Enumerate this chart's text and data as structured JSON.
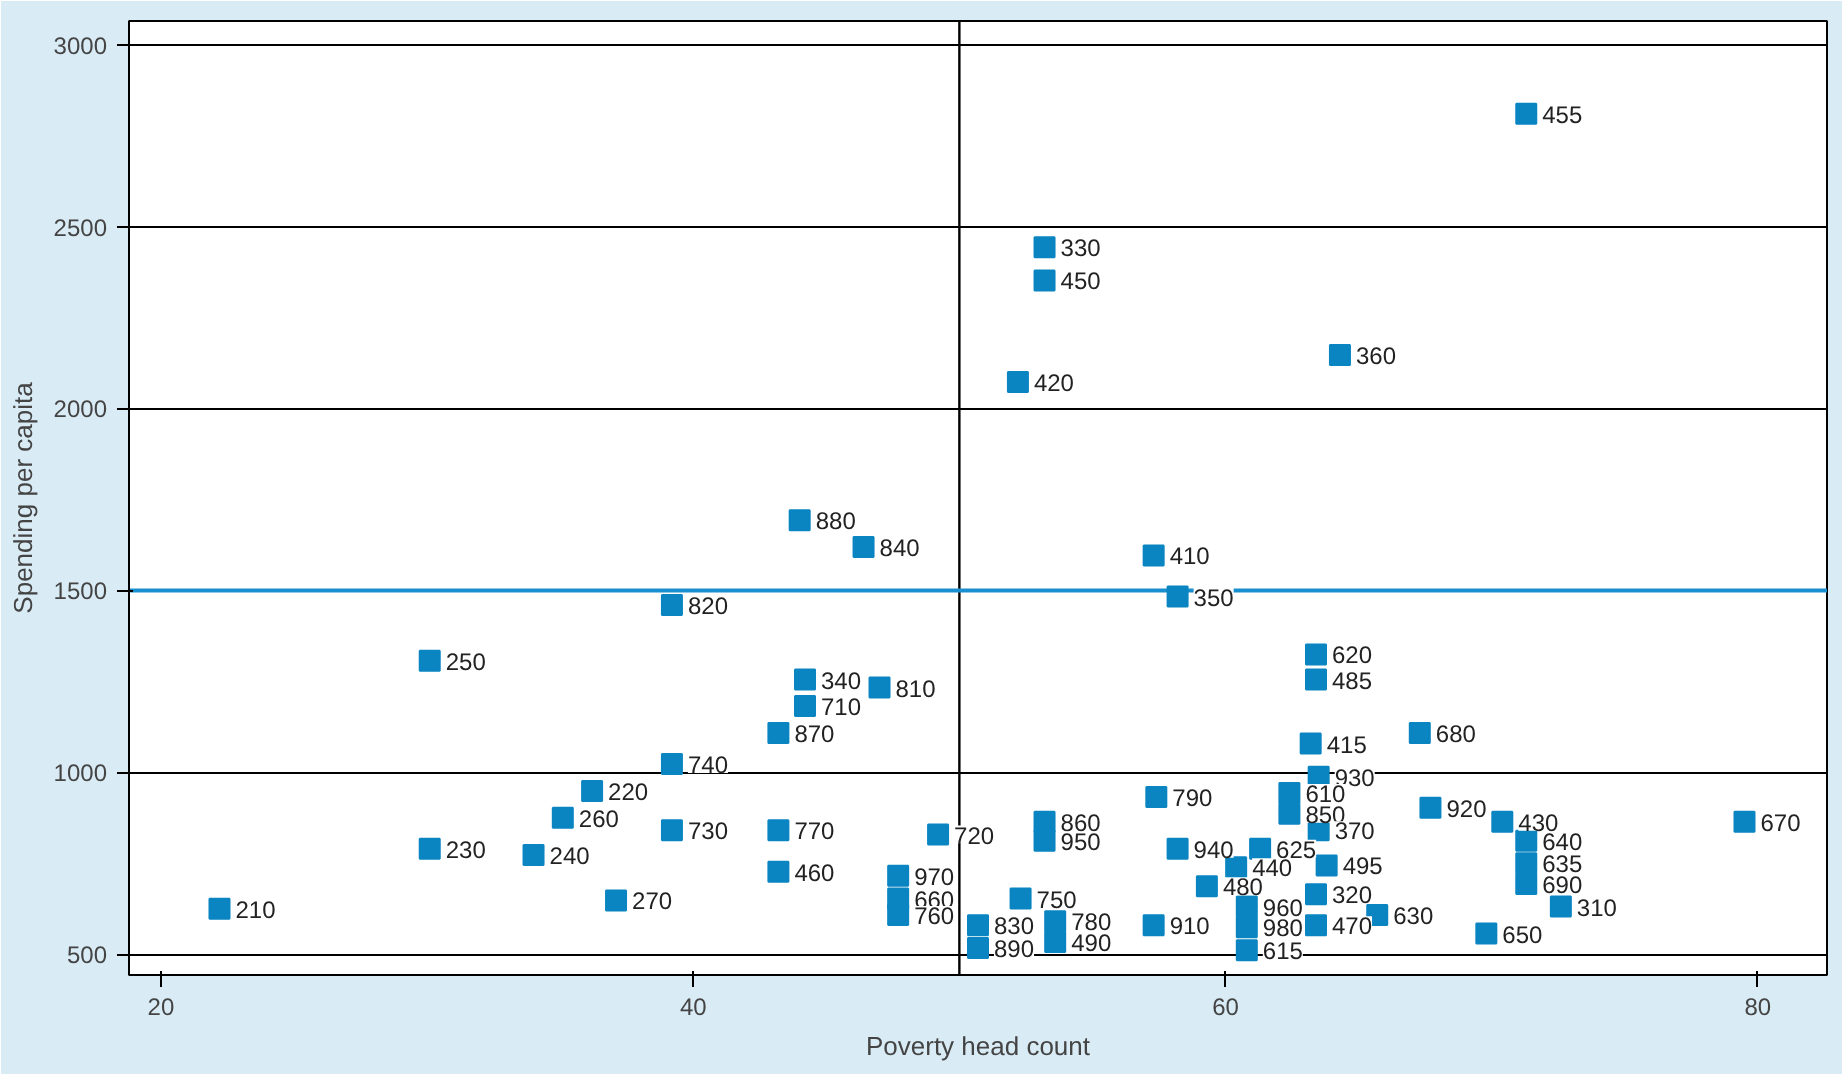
{
  "chart_data": {
    "type": "scatter",
    "xlabel": "Poverty head count",
    "ylabel": "Spending per capita",
    "xlim": [
      18.8,
      82.6
    ],
    "ylim": [
      443,
      3065
    ],
    "xticks": [
      20,
      40,
      60,
      80
    ],
    "yticks": [
      500,
      1000,
      1500,
      2000,
      2500,
      3000
    ],
    "grid": "y",
    "marker": "square",
    "ref_lines": [
      {
        "axis": "x",
        "value": 50,
        "color": "#000000"
      },
      {
        "axis": "y",
        "value": 1500,
        "color": "#1a8fd0"
      }
    ],
    "series": [
      {
        "color": "#0a85c2",
        "x": [
          71.3,
          53.2,
          53.2,
          52.2,
          64.3,
          44.0,
          46.4,
          57.3,
          58.2,
          39.2,
          30.1,
          63.4,
          63.4,
          44.2,
          47.0,
          44.2,
          43.2,
          63.2,
          67.3,
          39.2,
          63.5,
          36.2,
          62.4,
          57.4,
          62.4,
          67.7,
          35.1,
          70.4,
          79.5,
          53.2,
          39.2,
          43.2,
          49.2,
          63.5,
          53.2,
          71.3,
          30.1,
          58.2,
          61.3,
          34.0,
          71.3,
          60.4,
          63.8,
          43.2,
          47.7,
          71.3,
          59.3,
          47.7,
          63.4,
          37.1,
          52.3,
          60.8,
          72.6,
          22.2,
          47.7,
          65.7,
          53.6,
          50.7,
          57.3,
          60.8,
          63.4,
          69.8,
          50.7,
          53.6,
          60.8
        ],
        "values": [
          2810,
          2443,
          2352,
          2073,
          2147,
          1693,
          1619,
          1596,
          1483,
          1460,
          1307,
          1324,
          1255,
          1255,
          1233,
          1182,
          1108,
          1079,
          1108,
          1023,
          988,
          949,
          943,
          932,
          886,
          903,
          875,
          864,
          864,
          864,
          841,
          841,
          829,
          841,
          812,
          812,
          790,
          790,
          790,
          773,
          750,
          739,
          744,
          727,
          716,
          693,
          687,
          653,
          665,
          648,
          653,
          631,
          631,
          625,
          608,
          608,
          591,
          580,
          580,
          574,
          580,
          557,
          517,
          534,
          511
        ]
      }
    ],
    "annotations": [
      {
        "text": "455",
        "x": 71.3,
        "y": 2810
      },
      {
        "text": "330",
        "x": 53.2,
        "y": 2443
      },
      {
        "text": "450",
        "x": 53.2,
        "y": 2352
      },
      {
        "text": "420",
        "x": 52.2,
        "y": 2073
      },
      {
        "text": "360",
        "x": 64.3,
        "y": 2147
      },
      {
        "text": "880",
        "x": 44.0,
        "y": 1693
      },
      {
        "text": "840",
        "x": 46.4,
        "y": 1619
      },
      {
        "text": "410",
        "x": 57.3,
        "y": 1596
      },
      {
        "text": "350",
        "x": 58.2,
        "y": 1483
      },
      {
        "text": "820",
        "x": 39.2,
        "y": 1460
      },
      {
        "text": "250",
        "x": 30.1,
        "y": 1307
      },
      {
        "text": "620",
        "x": 63.4,
        "y": 1324
      },
      {
        "text": "485",
        "x": 63.4,
        "y": 1255
      },
      {
        "text": "340",
        "x": 44.2,
        "y": 1255
      },
      {
        "text": "810",
        "x": 47.0,
        "y": 1233
      },
      {
        "text": "710",
        "x": 44.2,
        "y": 1182
      },
      {
        "text": "870",
        "x": 43.2,
        "y": 1108
      },
      {
        "text": "415",
        "x": 63.2,
        "y": 1079
      },
      {
        "text": "680",
        "x": 67.3,
        "y": 1108
      },
      {
        "text": "740",
        "x": 39.2,
        "y": 1023
      },
      {
        "text": "930",
        "x": 63.5,
        "y": 988
      },
      {
        "text": "220",
        "x": 36.2,
        "y": 949
      },
      {
        "text": "610",
        "x": 62.4,
        "y": 943
      },
      {
        "text": "790",
        "x": 57.4,
        "y": 932
      },
      {
        "text": "850",
        "x": 62.4,
        "y": 886
      },
      {
        "text": "920",
        "x": 67.7,
        "y": 903
      },
      {
        "text": "260",
        "x": 35.1,
        "y": 875
      },
      {
        "text": "430",
        "x": 70.4,
        "y": 864
      },
      {
        "text": "670",
        "x": 79.5,
        "y": 864
      },
      {
        "text": "860",
        "x": 53.2,
        "y": 864
      },
      {
        "text": "730",
        "x": 39.2,
        "y": 841
      },
      {
        "text": "770",
        "x": 43.2,
        "y": 841
      },
      {
        "text": "720",
        "x": 49.2,
        "y": 829
      },
      {
        "text": "370",
        "x": 63.5,
        "y": 841
      },
      {
        "text": "950",
        "x": 53.2,
        "y": 812
      },
      {
        "text": "640",
        "x": 71.3,
        "y": 812
      },
      {
        "text": "230",
        "x": 30.1,
        "y": 790
      },
      {
        "text": "940",
        "x": 58.2,
        "y": 790
      },
      {
        "text": "625",
        "x": 61.3,
        "y": 790
      },
      {
        "text": "240",
        "x": 34.0,
        "y": 773
      },
      {
        "text": "635",
        "x": 71.3,
        "y": 750
      },
      {
        "text": "440",
        "x": 60.4,
        "y": 739
      },
      {
        "text": "495",
        "x": 63.8,
        "y": 744
      },
      {
        "text": "460",
        "x": 43.2,
        "y": 727
      },
      {
        "text": "970",
        "x": 47.7,
        "y": 716
      },
      {
        "text": "690",
        "x": 71.3,
        "y": 693
      },
      {
        "text": "480",
        "x": 59.3,
        "y": 687
      },
      {
        "text": "660",
        "x": 47.7,
        "y": 653
      },
      {
        "text": "320",
        "x": 63.4,
        "y": 665
      },
      {
        "text": "270",
        "x": 37.1,
        "y": 648
      },
      {
        "text": "750",
        "x": 52.3,
        "y": 653
      },
      {
        "text": "960",
        "x": 60.8,
        "y": 631
      },
      {
        "text": "310",
        "x": 72.6,
        "y": 631
      },
      {
        "text": "210",
        "x": 22.2,
        "y": 625
      },
      {
        "text": "760",
        "x": 47.7,
        "y": 608
      },
      {
        "text": "630",
        "x": 65.7,
        "y": 608
      },
      {
        "text": "780",
        "x": 53.6,
        "y": 591
      },
      {
        "text": "830",
        "x": 50.7,
        "y": 580
      },
      {
        "text": "910",
        "x": 57.3,
        "y": 580
      },
      {
        "text": "980",
        "x": 60.8,
        "y": 574
      },
      {
        "text": "470",
        "x": 63.4,
        "y": 580
      },
      {
        "text": "650",
        "x": 69.8,
        "y": 557
      },
      {
        "text": "890",
        "x": 50.7,
        "y": 517
      },
      {
        "text": "490",
        "x": 53.6,
        "y": 534
      },
      {
        "text": "615",
        "x": 60.8,
        "y": 511
      }
    ]
  }
}
